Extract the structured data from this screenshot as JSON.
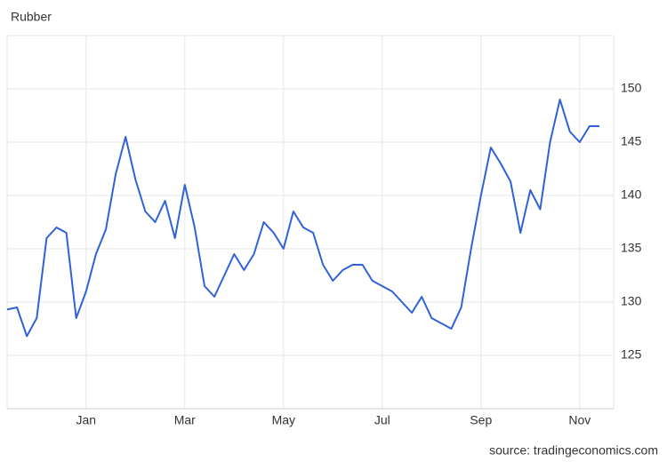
{
  "chart_data": {
    "type": "line",
    "title": "Rubber",
    "source": "source: tradingeconomics.com",
    "categories": [
      null,
      null,
      null,
      null,
      null,
      null,
      null,
      null,
      "Jan",
      null,
      null,
      null,
      null,
      null,
      null,
      null,
      null,
      null,
      "Mar",
      null,
      null,
      null,
      null,
      null,
      null,
      null,
      null,
      null,
      "May",
      null,
      null,
      null,
      null,
      null,
      null,
      null,
      null,
      null,
      "Jul",
      null,
      null,
      null,
      null,
      null,
      null,
      null,
      null,
      null,
      "Sep",
      null,
      null,
      null,
      null,
      null,
      null,
      null,
      null,
      null,
      "Nov",
      null,
      null
    ],
    "series": [
      {
        "name": "Rubber",
        "color": "#2f62d6",
        "values": [
          129.3,
          129.5,
          126.8,
          128.5,
          136,
          137,
          136.5,
          128.5,
          131,
          134.5,
          136.8,
          142,
          145.5,
          141.5,
          138.5,
          137.5,
          139.5,
          136,
          141,
          137,
          131.5,
          130.5,
          132.5,
          134.5,
          133,
          134.5,
          137.5,
          136.5,
          135,
          138.5,
          137,
          136.5,
          133.5,
          132,
          133,
          133.5,
          133.5,
          132,
          131.5,
          131,
          130,
          129,
          130.5,
          128.5,
          128,
          127.5,
          129.5,
          135,
          140,
          144.5,
          143,
          141.3,
          136.5,
          140.5,
          138.7,
          145,
          149,
          146,
          145,
          146.5,
          146.5
        ]
      }
    ],
    "ylim": [
      120,
      155
    ],
    "yticks": [
      125,
      130,
      135,
      140,
      145,
      150
    ],
    "grid": true
  }
}
